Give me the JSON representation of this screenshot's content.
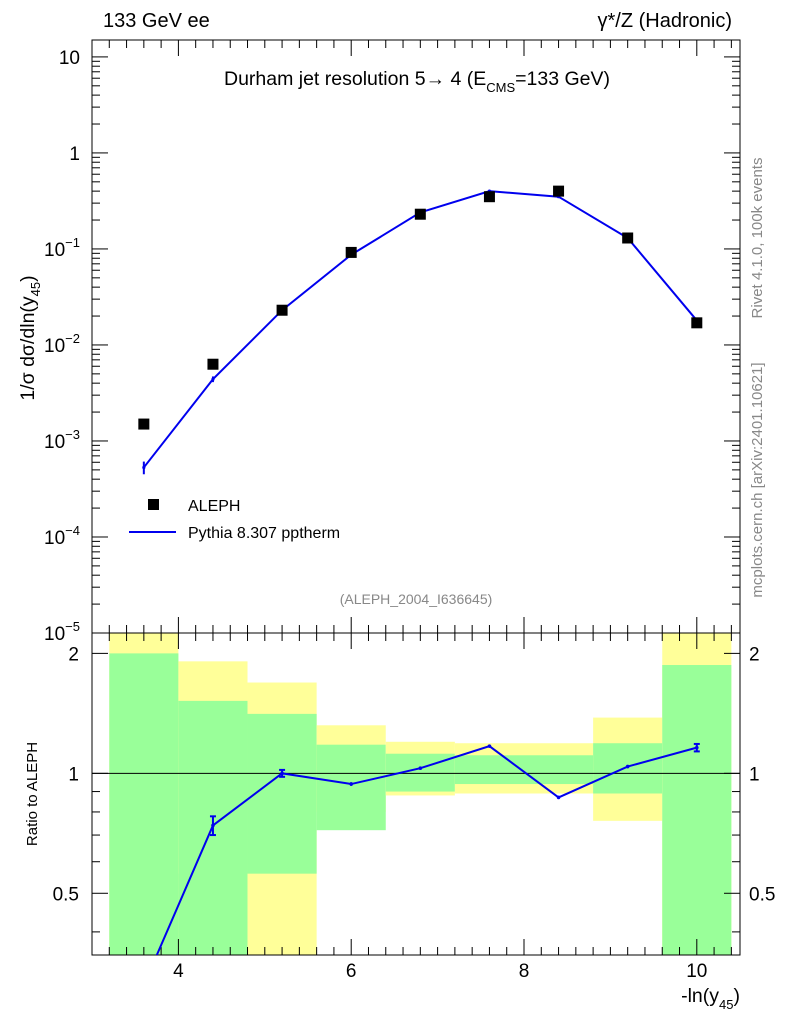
{
  "header": {
    "left": "133 GeV ee",
    "right": "γ*/Z (Hadronic)"
  },
  "side_labels": {
    "upper": "Rivet 4.1.0,  100k events",
    "lower": "mcplots.cern.ch [arXiv:2401.10621]"
  },
  "chart_data": [
    {
      "type": "line",
      "title": "Durham jet resolution 5→ 4 (ECMS=133 GeV)",
      "title_parts": {
        "main": "Durham jet resolution 5→  4 (E",
        "sub": "CMS",
        "tail": "=133 GeV)"
      },
      "watermark": "(ALEPH_2004_I636645)",
      "ylabel": "1/σ  dσ/dln(y45)",
      "ylabel_parts": {
        "main": "1/σ  dσ/dln(y",
        "sub": "45",
        "tail": ")"
      },
      "yscale": "log",
      "ylim": [
        1e-05,
        15
      ],
      "xlim": [
        3.0,
        10.5
      ],
      "ytick_labels": [
        {
          "value": 10,
          "base": "10",
          "exp": ""
        },
        {
          "value": 1,
          "base": "1",
          "exp": ""
        },
        {
          "value": 0.1,
          "base": "10",
          "exp": "−1"
        },
        {
          "value": 0.01,
          "base": "10",
          "exp": "−2"
        },
        {
          "value": 0.001,
          "base": "10",
          "exp": "−3"
        },
        {
          "value": 0.0001,
          "base": "10",
          "exp": "−4"
        },
        {
          "value": 1e-05,
          "base": "10",
          "exp": "−5"
        }
      ],
      "legend": {
        "position": "lower-left",
        "entries": [
          {
            "label": "ALEPH",
            "style": "marker"
          },
          {
            "label": "Pythia 8.307 pptherm",
            "style": "line"
          }
        ]
      },
      "series": [
        {
          "name": "ALEPH",
          "x": [
            3.6,
            4.4,
            5.2,
            6.0,
            6.8,
            7.6,
            8.4,
            9.2,
            10.0
          ],
          "values": [
            0.0015,
            0.0063,
            0.023,
            0.092,
            0.23,
            0.35,
            0.4,
            0.13,
            0.017
          ]
        },
        {
          "name": "Pythia 8.307 pptherm",
          "x": [
            3.6,
            4.4,
            5.2,
            6.0,
            6.8,
            7.6,
            8.4,
            9.2,
            10.0
          ],
          "values": [
            0.00053,
            0.0044,
            0.023,
            0.087,
            0.24,
            0.4,
            0.35,
            0.13,
            0.018
          ],
          "errors": [
            8e-05,
            0.0003,
            0.0006,
            0.002,
            0.003,
            0.004,
            0.004,
            0.002,
            0.0006
          ]
        }
      ]
    },
    {
      "type": "line",
      "ylabel": "Ratio to ALEPH",
      "xlabel": "-ln(y45)",
      "xlabel_parts": {
        "main": "-ln(y",
        "sub": "45",
        "tail": ")"
      },
      "xlim": [
        3.0,
        10.5
      ],
      "ylim": [
        0.35,
        2.25
      ],
      "xtick_labels": [
        "4",
        "6",
        "8",
        "10"
      ],
      "xtick_values": [
        4,
        6,
        8,
        10
      ],
      "ytick_labels": [
        "0.5",
        "1",
        "2"
      ],
      "ytick_values": [
        0.5,
        1,
        2
      ],
      "bands": {
        "edges": [
          3.2,
          4.0,
          4.8,
          5.6,
          6.4,
          7.2,
          8.0,
          8.8,
          9.6,
          10.4
        ],
        "yellow_low": [
          0.35,
          0.56,
          0.35,
          0.8,
          0.88,
          0.89,
          0.89,
          0.76,
          0.35
        ],
        "yellow_high": [
          2.25,
          1.91,
          1.69,
          1.32,
          1.2,
          1.19,
          1.19,
          1.38,
          2.25
        ],
        "green_low": [
          0.35,
          0.35,
          0.56,
          0.72,
          0.9,
          0.94,
          0.94,
          0.89,
          0.35
        ],
        "green_high": [
          2.0,
          1.52,
          1.41,
          1.18,
          1.12,
          1.11,
          1.11,
          1.19,
          1.87
        ]
      },
      "series": [
        {
          "name": "Pythia 8.307 pptherm / ALEPH",
          "x": [
            3.6,
            4.4,
            5.2,
            6.0,
            6.8,
            7.6,
            8.4,
            9.2,
            10.0
          ],
          "values": [
            0.35,
            0.74,
            1.0,
            0.94,
            1.03,
            1.17,
            0.87,
            1.04,
            1.16
          ],
          "errors": [
            0.0,
            0.04,
            0.02,
            0.01,
            0.008,
            0.008,
            0.008,
            0.01,
            0.025
          ]
        }
      ]
    }
  ]
}
